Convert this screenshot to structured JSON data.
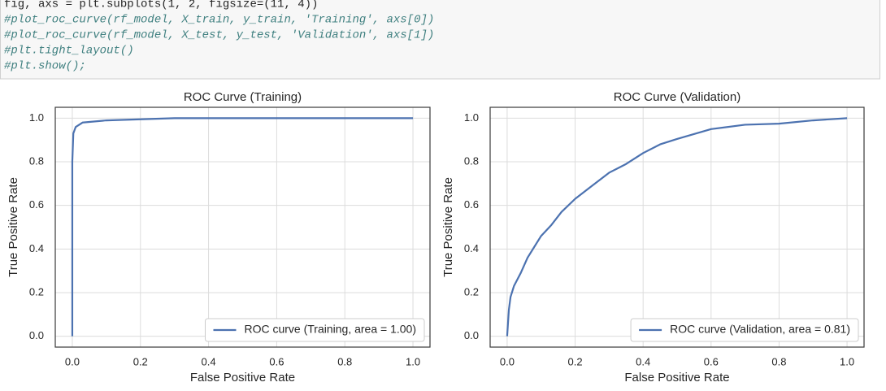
{
  "code": [
    "fig, axs = plt.subplots(1, 2, figsize=(11, 4))",
    "#plot_roc_curve(rf_model, X_train, y_train, 'Training', axs[0])",
    "#plot_roc_curve(rf_model, X_test, y_test, 'Validation', axs[1])",
    "#plt.tight_layout()",
    "#plt.show();"
  ],
  "chart_data": [
    {
      "type": "line",
      "title": "ROC Curve (Training)",
      "x_label": "False Positive Rate",
      "y_label": "True Positive Rate",
      "x": [
        0,
        0,
        0.003,
        0.01,
        0.03,
        0.1,
        0.3,
        1
      ],
      "series": [
        {
          "name": "ROC curve (Training, area = 1.00)",
          "color": "#4c72b0",
          "values": [
            0,
            0.8,
            0.93,
            0.96,
            0.98,
            0.99,
            1.0,
            1.0
          ]
        }
      ],
      "xlim": [
        -0.05,
        1.05
      ],
      "ylim": [
        -0.05,
        1.05
      ],
      "xticks": [
        {
          "value": 0,
          "label": "0.0"
        },
        0.2,
        0.4,
        0.6,
        0.8,
        {
          "value": 1,
          "label": "1.0"
        }
      ],
      "yticks": [
        {
          "value": 0,
          "label": "0.0"
        },
        0.2,
        0.4,
        0.6,
        0.8,
        {
          "value": 1,
          "label": "1.0"
        }
      ],
      "grid": true,
      "legend": "lower right"
    },
    {
      "type": "line",
      "title": "ROC Curve (Validation)",
      "x_label": "False Positive Rate",
      "y_label": "True Positive Rate",
      "x": [
        0,
        0.005,
        0.01,
        0.02,
        0.04,
        0.06,
        0.08,
        0.1,
        0.13,
        0.16,
        0.2,
        0.25,
        0.3,
        0.35,
        0.4,
        0.45,
        0.5,
        0.6,
        0.7,
        0.8,
        0.9,
        1
      ],
      "series": [
        {
          "name": "ROC curve (Validation, area = 0.81)",
          "color": "#4c72b0",
          "values": [
            0,
            0.12,
            0.18,
            0.23,
            0.29,
            0.36,
            0.41,
            0.46,
            0.51,
            0.57,
            0.63,
            0.69,
            0.75,
            0.79,
            0.84,
            0.88,
            0.905,
            0.95,
            0.97,
            0.975,
            0.99,
            1.0
          ]
        }
      ],
      "xlim": [
        -0.05,
        1.05
      ],
      "ylim": [
        -0.05,
        1.05
      ],
      "xticks": [
        {
          "value": 0,
          "label": "0.0"
        },
        0.2,
        0.4,
        0.6,
        0.8,
        {
          "value": 1,
          "label": "1.0"
        }
      ],
      "yticks": [
        {
          "value": 0,
          "label": "0.0"
        },
        0.2,
        0.4,
        0.6,
        0.8,
        {
          "value": 1,
          "label": "1.0"
        }
      ],
      "grid": true,
      "legend": "lower right"
    }
  ]
}
